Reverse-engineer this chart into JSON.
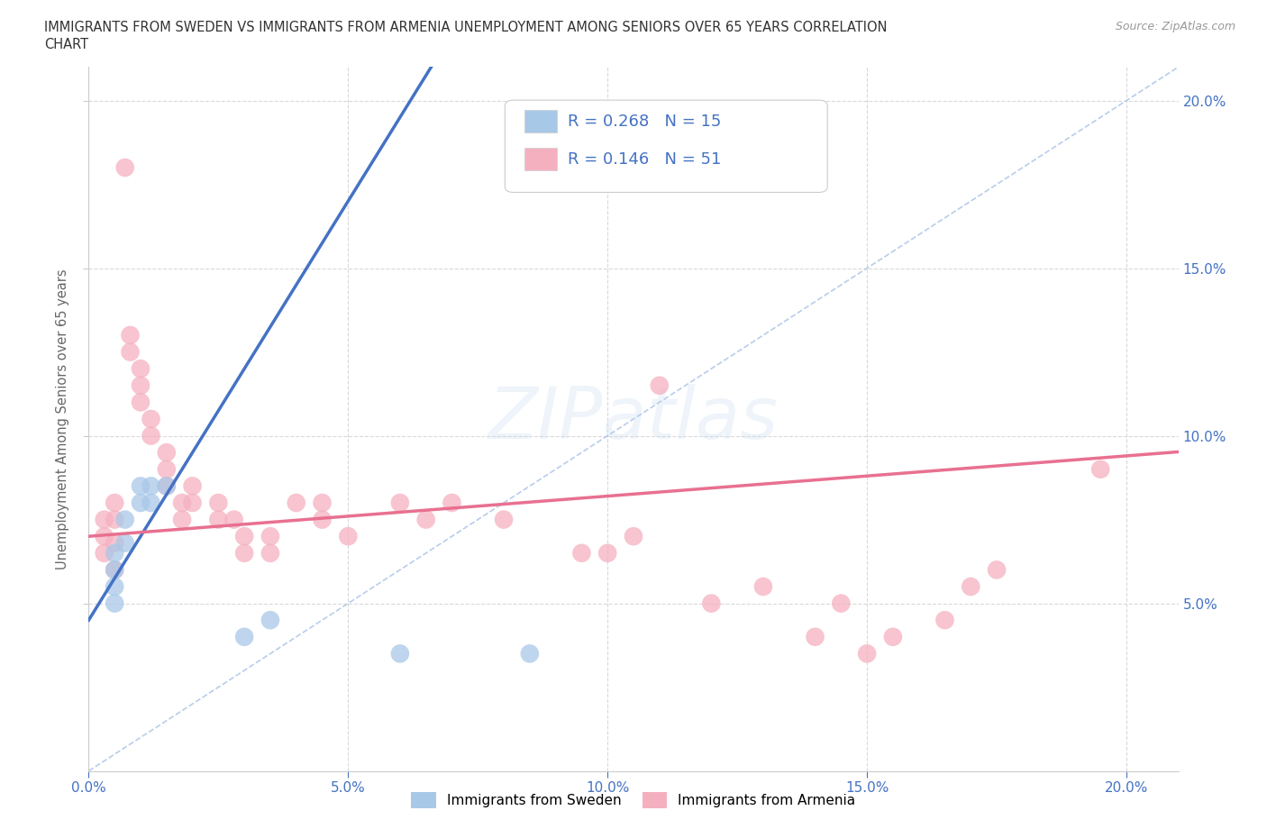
{
  "title_line1": "IMMIGRANTS FROM SWEDEN VS IMMIGRANTS FROM ARMENIA UNEMPLOYMENT AMONG SENIORS OVER 65 YEARS CORRELATION",
  "title_line2": "CHART",
  "source": "Source: ZipAtlas.com",
  "ylabel": "Unemployment Among Seniors over 65 years",
  "watermark": "ZIPatlas",
  "xlim": [
    0.0,
    0.21
  ],
  "ylim": [
    0.0,
    0.21
  ],
  "xticks": [
    0.0,
    0.05,
    0.1,
    0.15,
    0.2
  ],
  "yticks": [
    0.05,
    0.1,
    0.15,
    0.2
  ],
  "xticklabels": [
    "0.0%",
    "5.0%",
    "10.0%",
    "15.0%",
    "20.0%"
  ],
  "yticklabels_right": [
    "5.0%",
    "10.0%",
    "15.0%",
    "20.0%"
  ],
  "sweden_color": "#a8c8e8",
  "armenia_color": "#f5b0c0",
  "sweden_R": 0.268,
  "sweden_N": 15,
  "armenia_R": 0.146,
  "armenia_N": 51,
  "sweden_line_color": "#4472c4",
  "armenia_line_color": "#e87090",
  "diagonal_color": "#b0c8e8",
  "sweden_scatter": [
    [
      0.005,
      0.065
    ],
    [
      0.005,
      0.06
    ],
    [
      0.005,
      0.055
    ],
    [
      0.005,
      0.05
    ],
    [
      0.007,
      0.075
    ],
    [
      0.007,
      0.068
    ],
    [
      0.01,
      0.085
    ],
    [
      0.01,
      0.08
    ],
    [
      0.012,
      0.085
    ],
    [
      0.012,
      0.08
    ],
    [
      0.015,
      0.085
    ],
    [
      0.03,
      0.04
    ],
    [
      0.035,
      0.045
    ],
    [
      0.06,
      0.035
    ],
    [
      0.085,
      0.035
    ]
  ],
  "armenia_scatter": [
    [
      0.003,
      0.075
    ],
    [
      0.003,
      0.07
    ],
    [
      0.003,
      0.065
    ],
    [
      0.005,
      0.08
    ],
    [
      0.005,
      0.075
    ],
    [
      0.005,
      0.068
    ],
    [
      0.005,
      0.06
    ],
    [
      0.007,
      0.18
    ],
    [
      0.008,
      0.13
    ],
    [
      0.008,
      0.125
    ],
    [
      0.01,
      0.12
    ],
    [
      0.01,
      0.115
    ],
    [
      0.01,
      0.11
    ],
    [
      0.012,
      0.105
    ],
    [
      0.012,
      0.1
    ],
    [
      0.015,
      0.095
    ],
    [
      0.015,
      0.09
    ],
    [
      0.015,
      0.085
    ],
    [
      0.018,
      0.08
    ],
    [
      0.018,
      0.075
    ],
    [
      0.02,
      0.085
    ],
    [
      0.02,
      0.08
    ],
    [
      0.025,
      0.08
    ],
    [
      0.025,
      0.075
    ],
    [
      0.028,
      0.075
    ],
    [
      0.03,
      0.07
    ],
    [
      0.03,
      0.065
    ],
    [
      0.035,
      0.07
    ],
    [
      0.035,
      0.065
    ],
    [
      0.04,
      0.08
    ],
    [
      0.045,
      0.08
    ],
    [
      0.045,
      0.075
    ],
    [
      0.05,
      0.07
    ],
    [
      0.06,
      0.08
    ],
    [
      0.065,
      0.075
    ],
    [
      0.07,
      0.08
    ],
    [
      0.08,
      0.075
    ],
    [
      0.095,
      0.065
    ],
    [
      0.1,
      0.065
    ],
    [
      0.105,
      0.07
    ],
    [
      0.11,
      0.115
    ],
    [
      0.12,
      0.05
    ],
    [
      0.13,
      0.055
    ],
    [
      0.14,
      0.04
    ],
    [
      0.145,
      0.05
    ],
    [
      0.15,
      0.035
    ],
    [
      0.155,
      0.04
    ],
    [
      0.165,
      0.045
    ],
    [
      0.17,
      0.055
    ],
    [
      0.175,
      0.06
    ],
    [
      0.195,
      0.09
    ]
  ],
  "legend_sweden_label": "Immigrants from Sweden",
  "legend_armenia_label": "Immigrants from Armenia"
}
